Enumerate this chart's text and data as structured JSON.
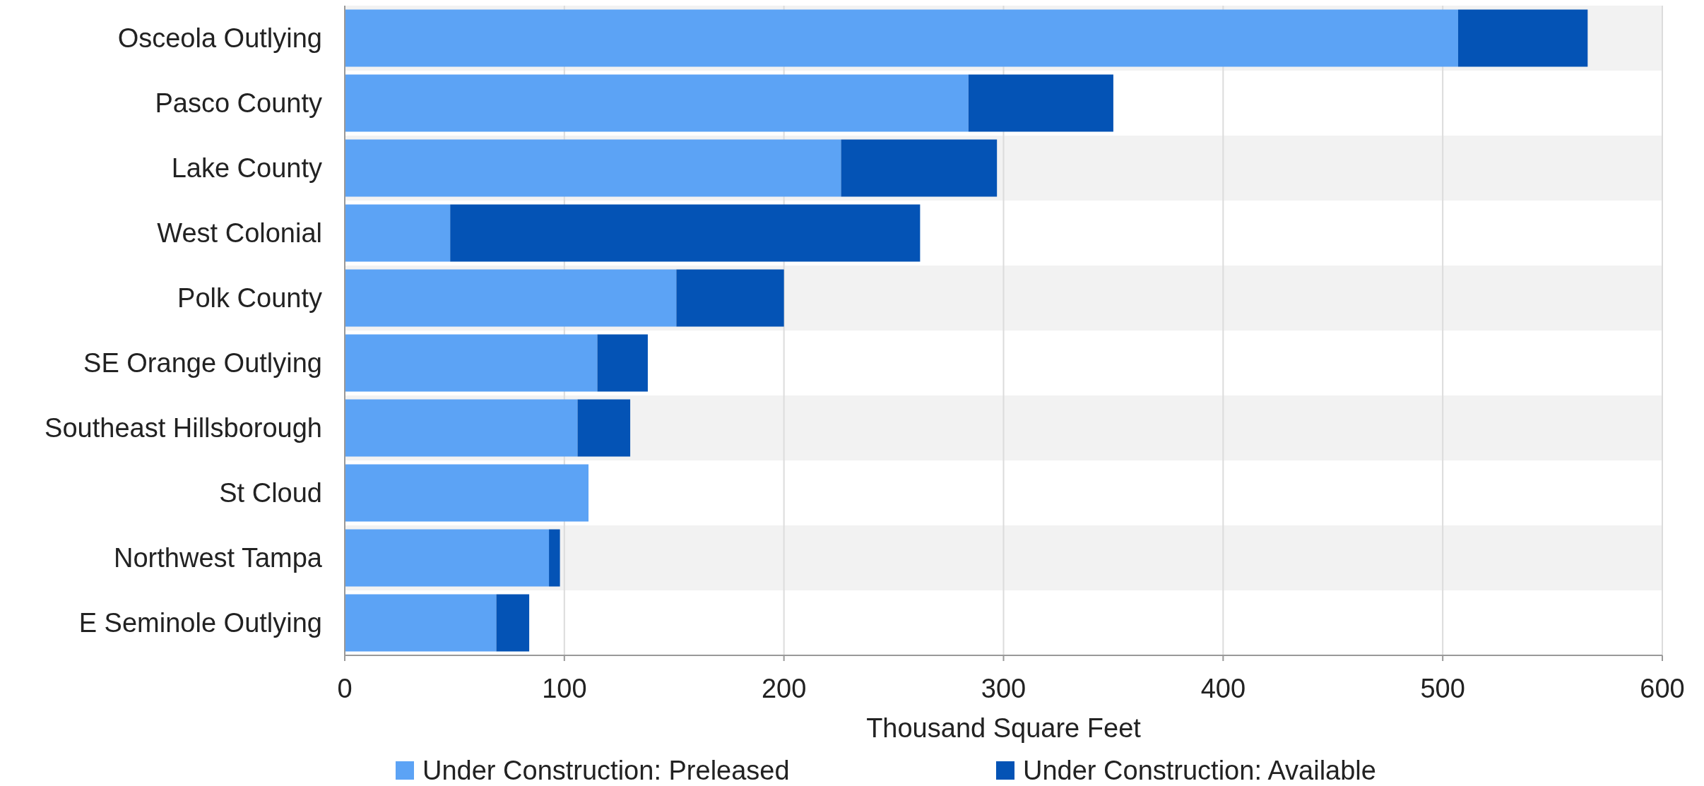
{
  "chart_data": {
    "type": "bar",
    "orientation": "horizontal",
    "stacked": true,
    "xlabel": "Thousand Square Feet",
    "categories": [
      "Osceola Outlying",
      "Pasco County",
      "Lake County",
      "West Colonial",
      "Polk County",
      "SE Orange Outlying",
      "Southeast Hillsborough",
      "St Cloud",
      "Northwest Tampa",
      "E Seminole Outlying"
    ],
    "series": [
      {
        "name": "Under Construction: Preleased",
        "color": "#5ca3f5",
        "values": [
          507,
          284,
          226,
          48,
          151,
          115,
          106,
          111,
          93,
          69
        ]
      },
      {
        "name": "Under Construction: Available",
        "color": "#0453b5",
        "values": [
          59,
          66,
          71,
          214,
          49,
          23,
          24,
          0,
          5,
          15
        ]
      }
    ],
    "xlim": [
      0,
      600
    ],
    "xticks": [
      0,
      100,
      200,
      300,
      400,
      500,
      600
    ],
    "grid": "x",
    "legend": "bottom"
  }
}
